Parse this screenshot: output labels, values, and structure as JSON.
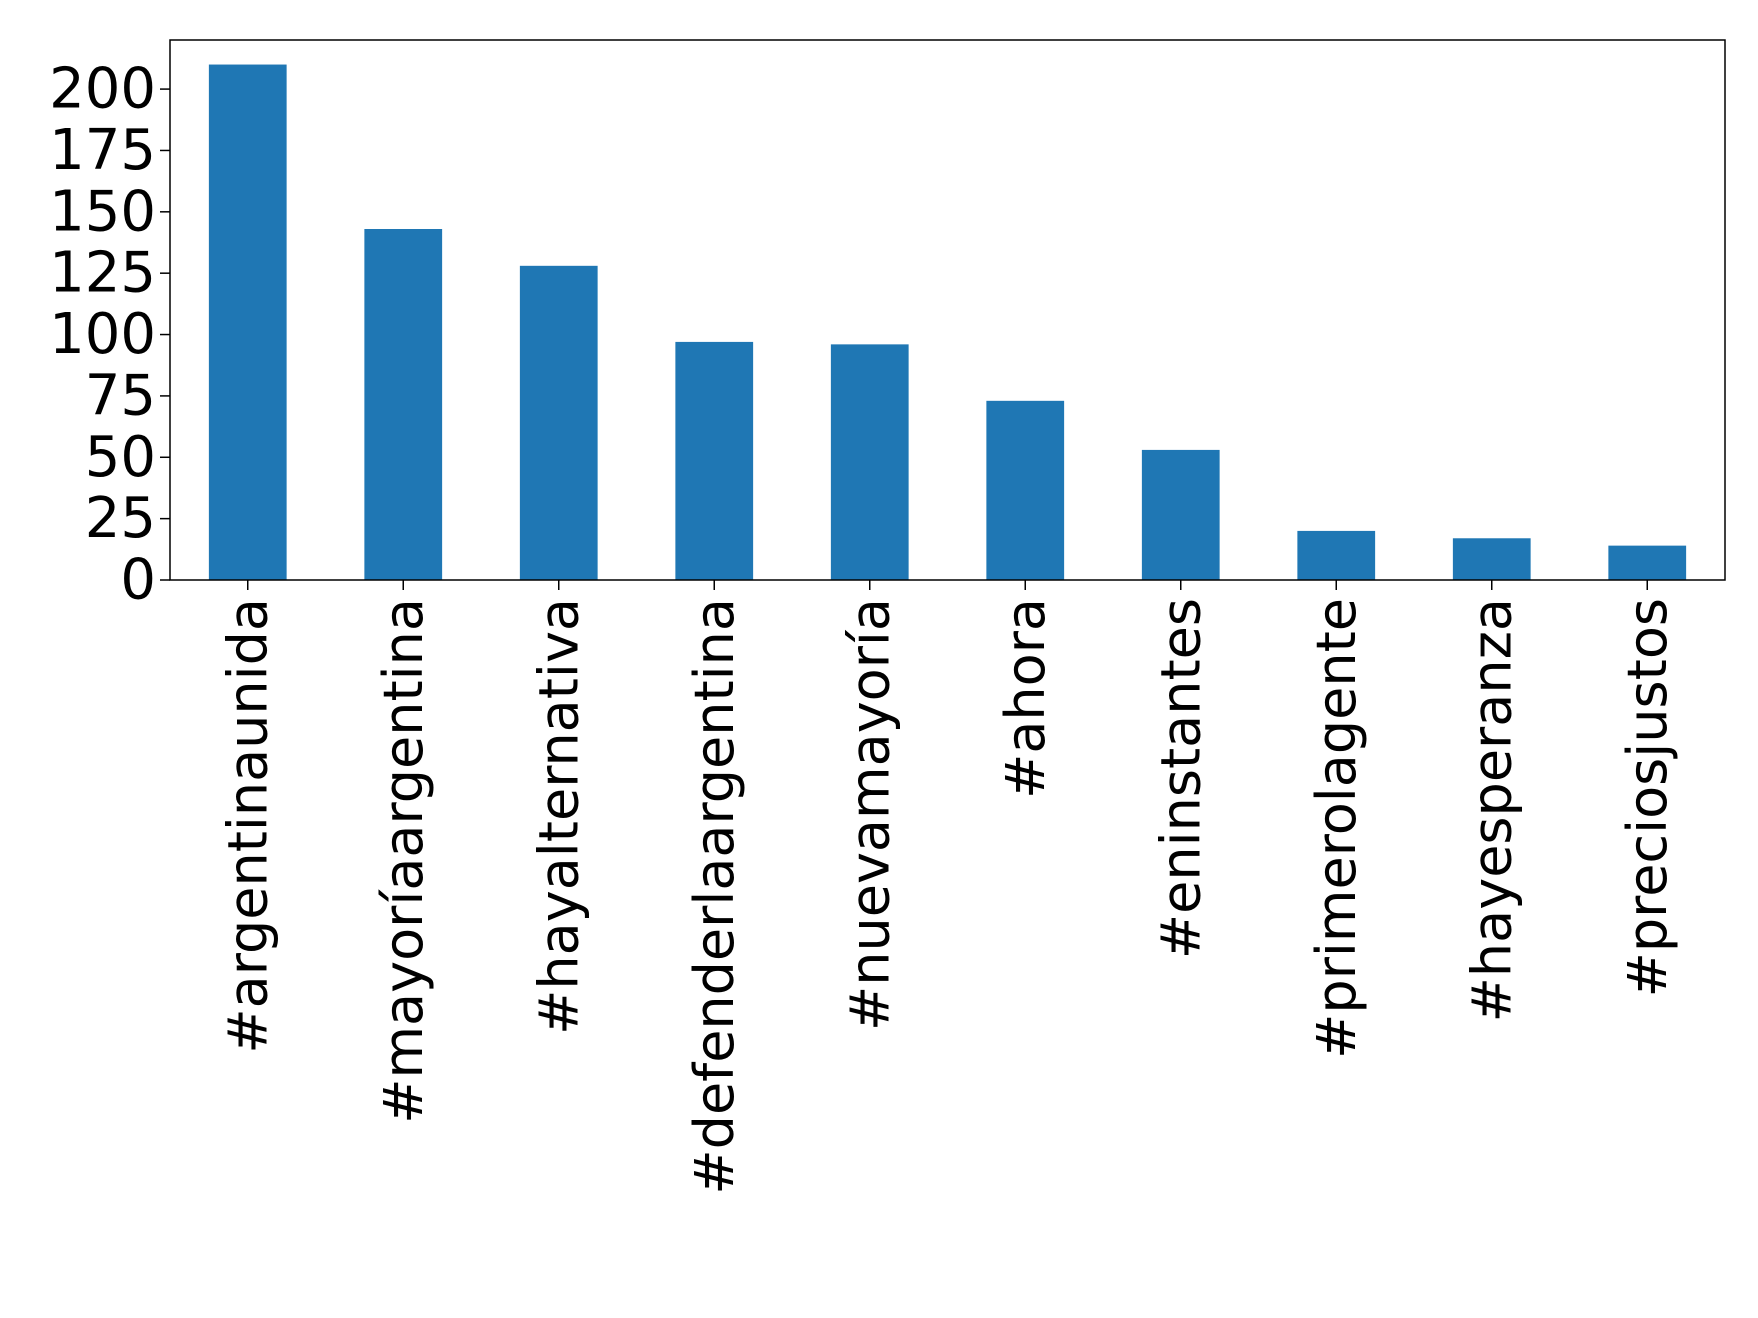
{
  "chart_data": {
    "type": "bar",
    "title": "",
    "xlabel": "",
    "ylabel": "",
    "categories": [
      "#argentinaunida",
      "#mayoríaargentina",
      "#hayalternativa",
      "#defenderlaargentina",
      "#nuevamayoría",
      "#ahora",
      "#eninstantes",
      "#primerolagente",
      "#hayesperanza",
      "#preciosjustos"
    ],
    "values": [
      210,
      143,
      128,
      97,
      96,
      73,
      53,
      20,
      17,
      14
    ],
    "ylim": [
      0,
      220
    ],
    "yticks": [
      0,
      25,
      50,
      75,
      100,
      125,
      150,
      175,
      200
    ],
    "ytick_labels": [
      "0",
      "25",
      "50",
      "75",
      "100",
      "125",
      "150",
      "175",
      "200"
    ],
    "bar_color": "#1f77b4",
    "grid": false,
    "legend": "none"
  }
}
